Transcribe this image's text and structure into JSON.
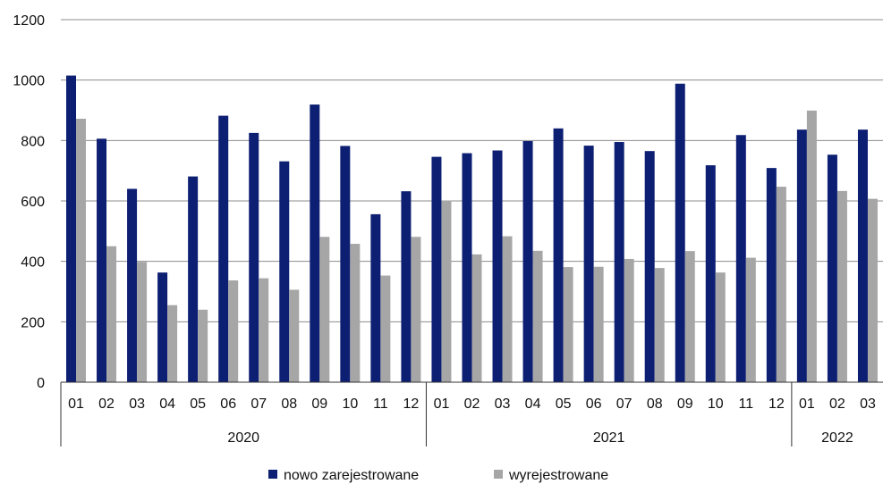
{
  "chart_data": {
    "type": "bar",
    "categories": [
      "01",
      "02",
      "03",
      "04",
      "05",
      "06",
      "07",
      "08",
      "09",
      "10",
      "11",
      "12",
      "01",
      "02",
      "03",
      "04",
      "05",
      "06",
      "07",
      "08",
      "09",
      "10",
      "11",
      "12",
      "01",
      "02",
      "03"
    ],
    "year_groups": [
      {
        "label": "2020",
        "months": 12
      },
      {
        "label": "2021",
        "months": 12
      },
      {
        "label": "2022",
        "months": 3
      }
    ],
    "series": [
      {
        "name": "nowo zarejestrowane",
        "color": "#0d1f73",
        "values": [
          1015,
          806,
          640,
          363,
          681,
          882,
          825,
          731,
          919,
          782,
          556,
          632,
          746,
          758,
          767,
          798,
          840,
          783,
          795,
          765,
          988,
          718,
          818,
          709,
          836,
          753,
          836
        ]
      },
      {
        "name": "wyrejestrowane",
        "color": "#a6a6a6",
        "values": [
          872,
          450,
          398,
          255,
          240,
          337,
          344,
          306,
          481,
          458,
          353,
          481,
          601,
          423,
          483,
          435,
          381,
          382,
          408,
          378,
          434,
          363,
          412,
          647,
          899,
          633,
          607
        ]
      }
    ],
    "ylim": [
      0,
      1200
    ],
    "yticks": [
      "0",
      "200",
      "400",
      "600",
      "800",
      "1000",
      "1200"
    ],
    "grid": true,
    "legend_position": "bottom"
  }
}
